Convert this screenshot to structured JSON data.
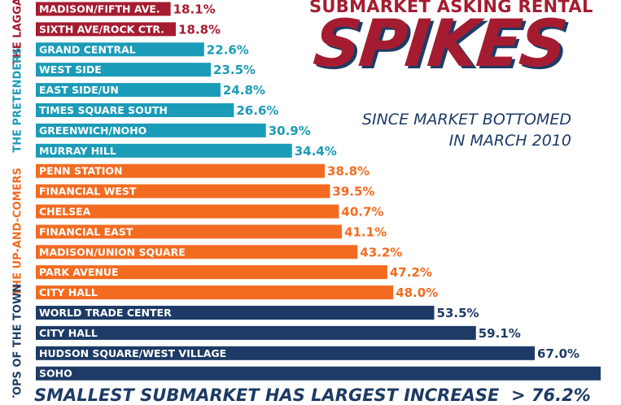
{
  "header": {
    "kicker": "SUBMARKET ASKING RENTAL",
    "title": "SPIKES",
    "subtitle": "SINCE MARKET BOTTOMED IN MARCH 2010"
  },
  "footer": {
    "note": "SMALLEST SUBMARKET HAS LARGEST INCREASE",
    "arrow_value": "> 76.2%"
  },
  "colors": {
    "laggards": "#a51c30",
    "pretenders": "#1a9bb7",
    "up_and_comers": "#f26b21",
    "tops": "#1d3b66"
  },
  "chart_data": {
    "type": "bar",
    "orientation": "horizontal",
    "title": "SUBMARKET ASKING RENTAL SPIKES",
    "subtitle": "SINCE MARKET BOTTOMED IN MARCH 2010",
    "unit": "%",
    "xlim": [
      0,
      80
    ],
    "groups": [
      {
        "name": "THE LAGGARDS",
        "color_key": "laggards",
        "categories": [
          "MADISON/FIFTH AVE.",
          "SIXTH AVE/ROCK CTR."
        ],
        "values": [
          18.1,
          18.8
        ],
        "labels": [
          "18.1%",
          "18.8%"
        ]
      },
      {
        "name": "THE PRETENDERS",
        "color_key": "pretenders",
        "categories": [
          "GRAND CENTRAL",
          "WEST SIDE",
          "EAST SIDE/UN",
          "TIMES SQUARE SOUTH",
          "GREENWICH/NOHO",
          "MURRAY HILL"
        ],
        "values": [
          22.6,
          23.5,
          24.8,
          26.6,
          30.9,
          34.4
        ],
        "labels": [
          "22.6%",
          "23.5%",
          "24.8%",
          "26.6%",
          "30.9%",
          "34.4%"
        ]
      },
      {
        "name": "THE UP-AND-COMERS",
        "color_key": "up_and_comers",
        "categories": [
          "PENN STATION",
          "FINANCIAL WEST",
          "CHELSEA",
          "FINANCIAL EAST",
          "MADISON/UNION SQUARE",
          "PARK AVENUE",
          "CITY HALL"
        ],
        "values": [
          38.8,
          39.5,
          40.7,
          41.1,
          43.2,
          47.2,
          48.0
        ],
        "labels": [
          "38.8%",
          "39.5%",
          "40.7%",
          "41.1%",
          "43.2%",
          "47.2%",
          "48.0%"
        ]
      },
      {
        "name": "TOPS OF THE TOWN",
        "color_key": "tops",
        "categories": [
          "WORLD TRADE CENTER",
          "CITY HALL",
          "HUDSON SQUARE/WEST VILLAGE",
          "SOHO"
        ],
        "values": [
          53.5,
          59.1,
          67.0,
          76.2
        ],
        "labels": [
          "53.5%",
          "59.1%",
          "67.0%",
          ""
        ]
      }
    ]
  }
}
